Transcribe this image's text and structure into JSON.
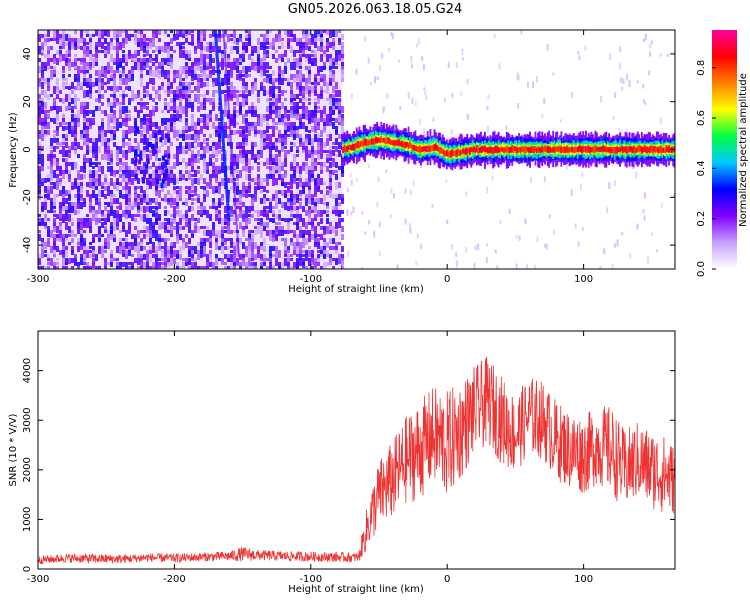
{
  "title": "GN05.2026.063.18.05.G24",
  "colors": {
    "axis": "#000000",
    "snr_line": "#ee3333",
    "background": "#ffffff"
  },
  "chart_data": [
    {
      "type": "heatmap",
      "name": "spectrogram",
      "xlabel": "Height of straight line (km)",
      "ylabel": "Frequency (Hz)",
      "xlim": [
        -300,
        167
      ],
      "ylim": [
        -50,
        50
      ],
      "x_ticks": [
        -300,
        -200,
        -100,
        0,
        100
      ],
      "y_ticks": [
        -40,
        -20,
        0,
        20,
        40
      ],
      "x_tick_labels": [
        "-300",
        "-200",
        "-100",
        "0",
        "100"
      ],
      "y_tick_labels": [
        "-40",
        "-20",
        "0",
        "20",
        "40"
      ],
      "colorbar": {
        "label": "Normalized spectral amplitude",
        "range": [
          0,
          0.95
        ],
        "ticks": [
          0.0,
          0.2,
          0.4,
          0.6,
          0.8
        ],
        "tick_labels": [
          "0.0",
          "0.2",
          "0.4",
          "0.6",
          "0.8"
        ],
        "colormap": [
          "#ffffff",
          "#c8a0ff",
          "#8000ff",
          "#0000ff",
          "#00c8ff",
          "#00ff40",
          "#ffff00",
          "#ff8000",
          "#ff0000",
          "#ff00a0"
        ]
      },
      "noise_region": {
        "x": [
          -300,
          -77
        ],
        "freq": [
          -50,
          50
        ],
        "level": 0.15
      },
      "tone_track": {
        "x": [
          -77,
          -70,
          -60,
          -50,
          -40,
          -30,
          -20,
          -10,
          0,
          10,
          20,
          40,
          60,
          80,
          100,
          120,
          140,
          167
        ],
        "freq": [
          0,
          1,
          3,
          4,
          3,
          2,
          0,
          1,
          -2,
          -1,
          0,
          0,
          0,
          0,
          0,
          0,
          0,
          0
        ],
        "amplitude": 0.9
      },
      "streak": {
        "x": [
          -170,
          -160
        ],
        "freq": [
          50,
          -30
        ]
      }
    },
    {
      "type": "line",
      "name": "snr",
      "xlabel": "Height of straight line (km)",
      "ylabel": "SNR (10 * V/V)",
      "xlim": [
        -300,
        167
      ],
      "ylim": [
        0,
        4800
      ],
      "x_ticks": [
        -300,
        -200,
        -100,
        0,
        100
      ],
      "y_ticks": [
        0,
        1000,
        2000,
        3000,
        4000
      ],
      "x_tick_labels": [
        "-300",
        "-200",
        "-100",
        "0",
        "100"
      ],
      "y_tick_labels": [
        "0",
        "1000",
        "2000",
        "3000",
        "4000"
      ],
      "series": [
        {
          "x": [
            -300,
            -280,
            -260,
            -240,
            -220,
            -200,
            -180,
            -160,
            -150,
            -140,
            -120,
            -100,
            -80,
            -65,
            -58,
            -50,
            -40,
            -30,
            -20,
            -10,
            0,
            10,
            20,
            30,
            40,
            50,
            60,
            70,
            80,
            90,
            100,
            110,
            120,
            130,
            140,
            150,
            160,
            167
          ],
          "y": [
            180,
            220,
            210,
            200,
            230,
            220,
            240,
            260,
            300,
            280,
            260,
            250,
            240,
            230,
            900,
            1500,
            1800,
            2200,
            2400,
            2700,
            2500,
            2800,
            3200,
            3400,
            3000,
            2700,
            3100,
            3000,
            2600,
            2400,
            2300,
            2500,
            2400,
            2000,
            2200,
            2000,
            1900,
            1800
          ],
          "noise_amplitude": [
            80,
            90,
            100,
            90,
            90,
            90,
            90,
            100,
            150,
            110,
            100,
            100,
            100,
            100,
            500,
            700,
            800,
            900,
            1000,
            1000,
            1100,
            1000,
            900,
            900,
            900,
            800,
            800,
            800,
            800,
            800,
            800,
            800,
            900,
            800,
            800,
            800,
            800,
            700
          ]
        }
      ]
    }
  ]
}
